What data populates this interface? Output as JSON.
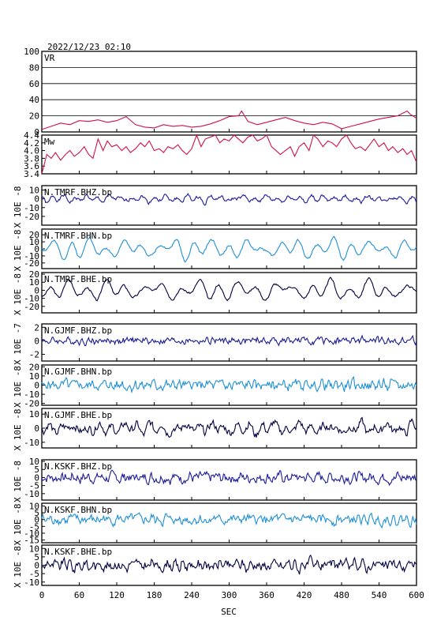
{
  "datetime": "2022/12/23 02:10",
  "chart_data": {
    "type": "line",
    "title": "2022/12/23 02:10",
    "xlabel": "SEC",
    "xlim": [
      0,
      600
    ],
    "xticks": [
      "0",
      "60",
      "120",
      "180",
      "240",
      "300",
      "360",
      "420",
      "480",
      "540",
      "600"
    ],
    "panels": [
      {
        "name": "VR",
        "color": "#d0104a",
        "ylim": [
          0,
          100
        ],
        "yticks": [
          "0",
          "20",
          "40",
          "60",
          "80",
          "100"
        ],
        "grid": true,
        "side_label": "",
        "x": [
          0,
          15,
          30,
          45,
          60,
          75,
          90,
          105,
          120,
          135,
          150,
          165,
          180,
          195,
          210,
          225,
          240,
          255,
          270,
          285,
          300,
          315,
          320,
          330,
          345,
          360,
          375,
          390,
          405,
          420,
          435,
          450,
          465,
          480,
          495,
          510,
          525,
          540,
          555,
          570,
          580,
          585,
          590,
          600
        ],
        "y": [
          3,
          7,
          11,
          9,
          14,
          13,
          15,
          12,
          14,
          19,
          9,
          6,
          5,
          9,
          7,
          8,
          6,
          7,
          10,
          14,
          19,
          20,
          26,
          13,
          9,
          12,
          15,
          18,
          14,
          11,
          9,
          12,
          10,
          4,
          7,
          10,
          13,
          16,
          18,
          20,
          24,
          26,
          22,
          17
        ]
      },
      {
        "name": "Mw",
        "color": "#d0104a",
        "ylim": [
          3.4,
          4.4
        ],
        "yticks": [
          "3.4",
          "3.6",
          "3.8",
          "4.0",
          "4.2",
          "4.4"
        ],
        "grid": false,
        "side_label": "",
        "x": [
          0,
          8,
          15,
          22,
          30,
          38,
          45,
          52,
          60,
          68,
          75,
          82,
          90,
          98,
          105,
          112,
          120,
          128,
          135,
          142,
          150,
          158,
          165,
          172,
          180,
          188,
          195,
          202,
          210,
          218,
          225,
          232,
          240,
          248,
          255,
          262,
          270,
          278,
          285,
          292,
          300,
          308,
          315,
          322,
          330,
          338,
          345,
          352,
          360,
          368,
          375,
          382,
          390,
          398,
          405,
          412,
          420,
          428,
          435,
          442,
          450,
          458,
          465,
          472,
          480,
          488,
          495,
          502,
          510,
          518,
          525,
          532,
          540,
          548,
          555,
          562,
          570,
          578,
          585,
          592,
          600
        ],
        "y": [
          3.4,
          3.9,
          3.8,
          3.95,
          3.75,
          3.9,
          4.0,
          3.85,
          3.95,
          4.1,
          3.9,
          3.8,
          4.3,
          4.0,
          4.25,
          4.1,
          4.15,
          4.0,
          4.1,
          3.95,
          4.05,
          4.2,
          4.1,
          4.25,
          4.0,
          4.05,
          3.95,
          4.1,
          4.05,
          4.15,
          4.0,
          3.9,
          4.05,
          4.4,
          4.1,
          4.3,
          4.35,
          4.4,
          4.2,
          4.3,
          4.25,
          4.4,
          4.3,
          4.2,
          4.35,
          4.4,
          4.25,
          4.3,
          4.4,
          4.1,
          4.0,
          3.9,
          4.0,
          4.1,
          3.85,
          4.1,
          4.2,
          4.0,
          4.4,
          4.3,
          4.1,
          4.25,
          4.2,
          4.1,
          4.3,
          4.4,
          4.2,
          4.05,
          4.1,
          4.0,
          4.15,
          4.3,
          4.1,
          4.2,
          4.0,
          4.1,
          3.95,
          4.05,
          3.9,
          4.0,
          3.7
        ]
      },
      {
        "name": "N.TMRF.BHZ.bp",
        "color": "#1a1a9a",
        "ylim": [
          -30,
          15
        ],
        "yticks": [
          "-20",
          "-10",
          "0",
          "10"
        ],
        "grid": false,
        "side_label": "X 10E -8",
        "wave": {
          "amp": 4,
          "noise": 0.15,
          "period": 18,
          "seed": 1
        }
      },
      {
        "name": "N.TMRF.BHN.bp",
        "color": "#1f8fd6",
        "ylim": [
          -28,
          28
        ],
        "yticks": [
          "-20",
          "-10",
          "0",
          "10",
          "20"
        ],
        "grid": false,
        "side_label": "X 10E -8",
        "wave": {
          "amp": 14,
          "noise": 0.1,
          "period": 28,
          "seed": 2
        }
      },
      {
        "name": "N.TMRF.BHE.bp",
        "color": "#000040",
        "ylim": [
          -28,
          22
        ],
        "yticks": [
          "-20",
          "-10",
          "0",
          "10",
          "20"
        ],
        "grid": false,
        "side_label": "X 10E -8",
        "wave": {
          "amp": 12,
          "noise": 0.1,
          "period": 30,
          "seed": 3
        }
      },
      {
        "name": "N.GJMF.BHZ.bp",
        "color": "#1a1a9a",
        "ylim": [
          -3,
          2.5
        ],
        "yticks": [
          "-2",
          "0",
          "2"
        ],
        "grid": false,
        "side_label": "X 10E -7",
        "wave": {
          "amp": 0.2,
          "noise": 0.3,
          "period": 8,
          "seed": 4
        }
      },
      {
        "name": "N.GJMF.BHN.bp",
        "color": "#1f8fd6",
        "ylim": [
          -22,
          22
        ],
        "yticks": [
          "-20",
          "-10",
          "0",
          "10",
          "20"
        ],
        "grid": false,
        "side_label": "X 10E -8",
        "wave": {
          "amp": 3,
          "noise": 0.4,
          "period": 10,
          "seed": 5
        }
      },
      {
        "name": "N.GJMF.BHE.bp",
        "color": "#000040",
        "ylim": [
          -14,
          14
        ],
        "yticks": [
          "-10",
          "0",
          "10"
        ],
        "grid": false,
        "side_label": "X 10E -8",
        "wave": {
          "amp": 4,
          "noise": 0.35,
          "period": 20,
          "seed": 6
        }
      },
      {
        "name": "N.KSKF.BHZ.bp",
        "color": "#1a1a9a",
        "ylim": [
          -14,
          11
        ],
        "yticks": [
          "-10",
          "-5",
          "0",
          "5",
          "10"
        ],
        "grid": false,
        "side_label": "X 10E -8",
        "wave": {
          "amp": 1.2,
          "noise": 0.4,
          "period": 9,
          "seed": 7
        }
      },
      {
        "name": "N.KSKF.BHN.bp",
        "color": "#1f8fd6",
        "ylim": [
          -17,
          12
        ],
        "yticks": [
          "-15",
          "-10",
          "-5",
          "0",
          "5",
          "10"
        ],
        "grid": false,
        "side_label": "X 10E -8",
        "wave": {
          "amp": 1.5,
          "noise": 0.4,
          "period": 11,
          "seed": 8
        }
      },
      {
        "name": "N.KSKF.BHE.bp",
        "color": "#000040",
        "ylim": [
          -12,
          12
        ],
        "yticks": [
          "-10",
          "-5",
          "0",
          "5",
          "10"
        ],
        "grid": false,
        "side_label": "X 10E -8",
        "wave": {
          "amp": 2.5,
          "noise": 0.4,
          "period": 12,
          "seed": 9
        }
      }
    ]
  }
}
